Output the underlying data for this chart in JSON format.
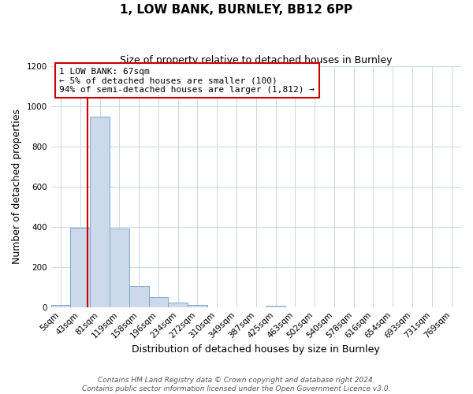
{
  "title": "1, LOW BANK, BURNLEY, BB12 6PP",
  "subtitle": "Size of property relative to detached houses in Burnley",
  "xlabel": "Distribution of detached houses by size in Burnley",
  "ylabel": "Number of detached properties",
  "bin_labels": [
    "5sqm",
    "43sqm",
    "81sqm",
    "119sqm",
    "158sqm",
    "196sqm",
    "234sqm",
    "272sqm",
    "310sqm",
    "349sqm",
    "387sqm",
    "425sqm",
    "463sqm",
    "502sqm",
    "540sqm",
    "578sqm",
    "616sqm",
    "654sqm",
    "693sqm",
    "731sqm",
    "769sqm"
  ],
  "bar_heights": [
    10,
    395,
    950,
    390,
    105,
    50,
    22,
    10,
    0,
    0,
    0,
    8,
    0,
    0,
    0,
    0,
    0,
    0,
    0,
    0,
    0
  ],
  "bar_color": "#ccd9ea",
  "bar_edge_color": "#7fa8cc",
  "vline_x": 1.38,
  "vline_color": "#cc0000",
  "annotation_line1": "1 LOW BANK: 67sqm",
  "annotation_line2": "← 5% of detached houses are smaller (100)",
  "annotation_line3": "94% of semi-detached houses are larger (1,812) →",
  "annotation_box_color": "#ffffff",
  "annotation_box_edge_color": "#cc0000",
  "ylim": [
    0,
    1200
  ],
  "yticks": [
    0,
    200,
    400,
    600,
    800,
    1000,
    1200
  ],
  "footer_line1": "Contains HM Land Registry data © Crown copyright and database right 2024.",
  "footer_line2": "Contains public sector information licensed under the Open Government Licence v3.0.",
  "background_color": "#ffffff",
  "grid_color": "#c8d8e8",
  "title_fontsize": 11,
  "subtitle_fontsize": 9,
  "xlabel_fontsize": 9,
  "ylabel_fontsize": 9,
  "tick_fontsize": 7.5,
  "annotation_fontsize": 8,
  "footer_fontsize": 6.5
}
